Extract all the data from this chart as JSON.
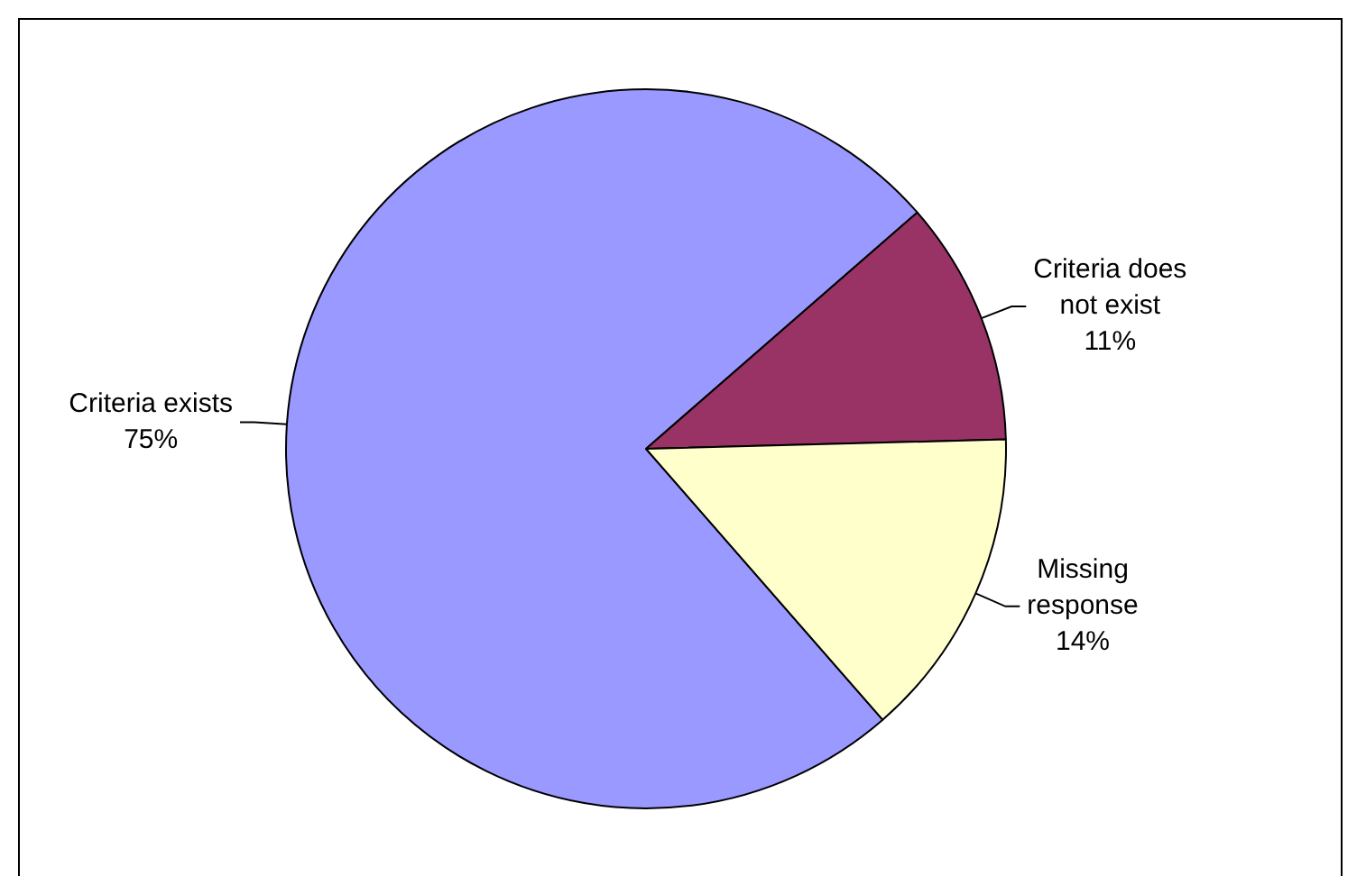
{
  "chart_data": {
    "type": "pie",
    "categories": [
      "Criteria exists",
      "Criteria does not exist",
      "Missing response"
    ],
    "values": [
      75,
      11,
      14
    ],
    "colors": [
      "#9999ff",
      "#993366",
      "#ffffcc"
    ],
    "value_labels": [
      "75%",
      "11%",
      "14%"
    ],
    "legend": false
  }
}
